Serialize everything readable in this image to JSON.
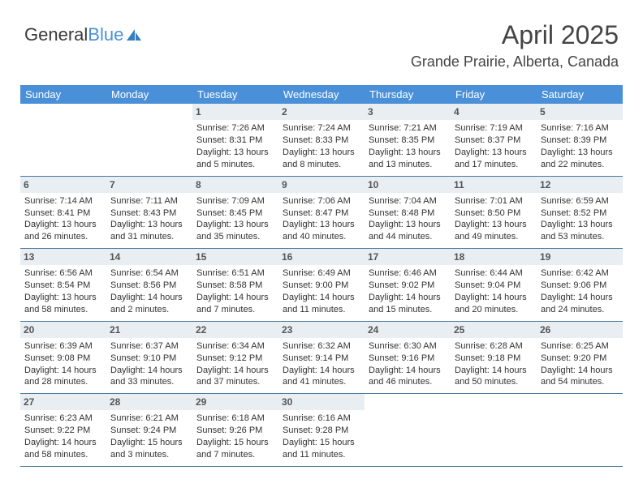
{
  "logo": {
    "part1": "General",
    "part2": "Blue",
    "icon_color": "#357fbe"
  },
  "header": {
    "title": "April 2025",
    "location": "Grande Prairie, Alberta, Canada"
  },
  "colors": {
    "header_bg": "#4a90d9",
    "header_text": "#ffffff",
    "daynum_bg": "#e9eef3",
    "row_border": "#4a7a9d"
  },
  "weekdays": [
    "Sunday",
    "Monday",
    "Tuesday",
    "Wednesday",
    "Thursday",
    "Friday",
    "Saturday"
  ],
  "weeks": [
    [
      {
        "empty": true
      },
      {
        "empty": true
      },
      {
        "day": "1",
        "sunrise": "Sunrise: 7:26 AM",
        "sunset": "Sunset: 8:31 PM",
        "daylight1": "Daylight: 13 hours",
        "daylight2": "and 5 minutes."
      },
      {
        "day": "2",
        "sunrise": "Sunrise: 7:24 AM",
        "sunset": "Sunset: 8:33 PM",
        "daylight1": "Daylight: 13 hours",
        "daylight2": "and 8 minutes."
      },
      {
        "day": "3",
        "sunrise": "Sunrise: 7:21 AM",
        "sunset": "Sunset: 8:35 PM",
        "daylight1": "Daylight: 13 hours",
        "daylight2": "and 13 minutes."
      },
      {
        "day": "4",
        "sunrise": "Sunrise: 7:19 AM",
        "sunset": "Sunset: 8:37 PM",
        "daylight1": "Daylight: 13 hours",
        "daylight2": "and 17 minutes."
      },
      {
        "day": "5",
        "sunrise": "Sunrise: 7:16 AM",
        "sunset": "Sunset: 8:39 PM",
        "daylight1": "Daylight: 13 hours",
        "daylight2": "and 22 minutes."
      }
    ],
    [
      {
        "day": "6",
        "sunrise": "Sunrise: 7:14 AM",
        "sunset": "Sunset: 8:41 PM",
        "daylight1": "Daylight: 13 hours",
        "daylight2": "and 26 minutes."
      },
      {
        "day": "7",
        "sunrise": "Sunrise: 7:11 AM",
        "sunset": "Sunset: 8:43 PM",
        "daylight1": "Daylight: 13 hours",
        "daylight2": "and 31 minutes."
      },
      {
        "day": "8",
        "sunrise": "Sunrise: 7:09 AM",
        "sunset": "Sunset: 8:45 PM",
        "daylight1": "Daylight: 13 hours",
        "daylight2": "and 35 minutes."
      },
      {
        "day": "9",
        "sunrise": "Sunrise: 7:06 AM",
        "sunset": "Sunset: 8:47 PM",
        "daylight1": "Daylight: 13 hours",
        "daylight2": "and 40 minutes."
      },
      {
        "day": "10",
        "sunrise": "Sunrise: 7:04 AM",
        "sunset": "Sunset: 8:48 PM",
        "daylight1": "Daylight: 13 hours",
        "daylight2": "and 44 minutes."
      },
      {
        "day": "11",
        "sunrise": "Sunrise: 7:01 AM",
        "sunset": "Sunset: 8:50 PM",
        "daylight1": "Daylight: 13 hours",
        "daylight2": "and 49 minutes."
      },
      {
        "day": "12",
        "sunrise": "Sunrise: 6:59 AM",
        "sunset": "Sunset: 8:52 PM",
        "daylight1": "Daylight: 13 hours",
        "daylight2": "and 53 minutes."
      }
    ],
    [
      {
        "day": "13",
        "sunrise": "Sunrise: 6:56 AM",
        "sunset": "Sunset: 8:54 PM",
        "daylight1": "Daylight: 13 hours",
        "daylight2": "and 58 minutes."
      },
      {
        "day": "14",
        "sunrise": "Sunrise: 6:54 AM",
        "sunset": "Sunset: 8:56 PM",
        "daylight1": "Daylight: 14 hours",
        "daylight2": "and 2 minutes."
      },
      {
        "day": "15",
        "sunrise": "Sunrise: 6:51 AM",
        "sunset": "Sunset: 8:58 PM",
        "daylight1": "Daylight: 14 hours",
        "daylight2": "and 7 minutes."
      },
      {
        "day": "16",
        "sunrise": "Sunrise: 6:49 AM",
        "sunset": "Sunset: 9:00 PM",
        "daylight1": "Daylight: 14 hours",
        "daylight2": "and 11 minutes."
      },
      {
        "day": "17",
        "sunrise": "Sunrise: 6:46 AM",
        "sunset": "Sunset: 9:02 PM",
        "daylight1": "Daylight: 14 hours",
        "daylight2": "and 15 minutes."
      },
      {
        "day": "18",
        "sunrise": "Sunrise: 6:44 AM",
        "sunset": "Sunset: 9:04 PM",
        "daylight1": "Daylight: 14 hours",
        "daylight2": "and 20 minutes."
      },
      {
        "day": "19",
        "sunrise": "Sunrise: 6:42 AM",
        "sunset": "Sunset: 9:06 PM",
        "daylight1": "Daylight: 14 hours",
        "daylight2": "and 24 minutes."
      }
    ],
    [
      {
        "day": "20",
        "sunrise": "Sunrise: 6:39 AM",
        "sunset": "Sunset: 9:08 PM",
        "daylight1": "Daylight: 14 hours",
        "daylight2": "and 28 minutes."
      },
      {
        "day": "21",
        "sunrise": "Sunrise: 6:37 AM",
        "sunset": "Sunset: 9:10 PM",
        "daylight1": "Daylight: 14 hours",
        "daylight2": "and 33 minutes."
      },
      {
        "day": "22",
        "sunrise": "Sunrise: 6:34 AM",
        "sunset": "Sunset: 9:12 PM",
        "daylight1": "Daylight: 14 hours",
        "daylight2": "and 37 minutes."
      },
      {
        "day": "23",
        "sunrise": "Sunrise: 6:32 AM",
        "sunset": "Sunset: 9:14 PM",
        "daylight1": "Daylight: 14 hours",
        "daylight2": "and 41 minutes."
      },
      {
        "day": "24",
        "sunrise": "Sunrise: 6:30 AM",
        "sunset": "Sunset: 9:16 PM",
        "daylight1": "Daylight: 14 hours",
        "daylight2": "and 46 minutes."
      },
      {
        "day": "25",
        "sunrise": "Sunrise: 6:28 AM",
        "sunset": "Sunset: 9:18 PM",
        "daylight1": "Daylight: 14 hours",
        "daylight2": "and 50 minutes."
      },
      {
        "day": "26",
        "sunrise": "Sunrise: 6:25 AM",
        "sunset": "Sunset: 9:20 PM",
        "daylight1": "Daylight: 14 hours",
        "daylight2": "and 54 minutes."
      }
    ],
    [
      {
        "day": "27",
        "sunrise": "Sunrise: 6:23 AM",
        "sunset": "Sunset: 9:22 PM",
        "daylight1": "Daylight: 14 hours",
        "daylight2": "and 58 minutes."
      },
      {
        "day": "28",
        "sunrise": "Sunrise: 6:21 AM",
        "sunset": "Sunset: 9:24 PM",
        "daylight1": "Daylight: 15 hours",
        "daylight2": "and 3 minutes."
      },
      {
        "day": "29",
        "sunrise": "Sunrise: 6:18 AM",
        "sunset": "Sunset: 9:26 PM",
        "daylight1": "Daylight: 15 hours",
        "daylight2": "and 7 minutes."
      },
      {
        "day": "30",
        "sunrise": "Sunrise: 6:16 AM",
        "sunset": "Sunset: 9:28 PM",
        "daylight1": "Daylight: 15 hours",
        "daylight2": "and 11 minutes."
      },
      {
        "empty": true
      },
      {
        "empty": true
      },
      {
        "empty": true
      }
    ]
  ]
}
